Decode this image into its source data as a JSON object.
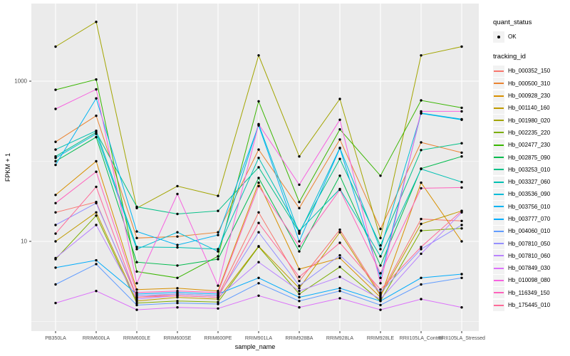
{
  "figure": {
    "xlabel": "sample_name",
    "ylabel": "FPKM + 1"
  },
  "legend": {
    "quant_title": "quant_status",
    "quant_items": [
      {
        "label": "OK",
        "shape": "point"
      }
    ],
    "tracking_title": "tracking_id"
  },
  "style": {
    "panel_bg": "#EBEBEB",
    "grid_color": "#FFFFFF",
    "tick_label_color": "#4D4D4D",
    "tick_mark_color": "#333333",
    "point_color": "#000000"
  },
  "chart_data": {
    "type": "line",
    "title": "",
    "xlabel": "sample_name",
    "ylabel": "FPKM + 1",
    "x_type": "categorical",
    "y_scale": "log10",
    "y_major_ticks": [
      10,
      1000
    ],
    "y_minor_gridlines": [
      1,
      100
    ],
    "ylim": [
      0.76,
      9300
    ],
    "grid": true,
    "legend_position": "right",
    "point_shape": "filled-circle",
    "categories": [
      "PB350LA",
      "RRIM600LA",
      "RRIM600LE",
      "RRIM600SE",
      "RRIM600PE",
      "RRIM901LA",
      "RRIM928BA",
      "RRIM928LA",
      "RRIM928LE",
      "RRII105LA_Control",
      "RRII105LA_Stressed"
    ],
    "series": [
      {
        "name": "Hb_000352_150",
        "color": "#F8766D",
        "values": [
          23,
          31,
          2.0,
          2.2,
          2.1,
          23,
          3.2,
          14,
          2.2,
          19,
          18
        ]
      },
      {
        "name": "Hb_000500_310",
        "color": "#EA8331",
        "values": [
          175,
          370,
          11,
          11.5,
          13,
          140,
          26,
          187,
          14.3,
          172,
          128
        ]
      },
      {
        "name": "Hb_000928_230",
        "color": "#D89000",
        "values": [
          38,
          100,
          2.5,
          2.6,
          2.4,
          54,
          4.5,
          6.2,
          2.0,
          54,
          10
        ]
      },
      {
        "name": "Hb_001140_160",
        "color": "#C09B00",
        "values": [
          10,
          23,
          1.8,
          2.0,
          1.9,
          8.7,
          2.6,
          13,
          2.1,
          16.5,
          24
        ]
      },
      {
        "name": "Hb_001980_020",
        "color": "#A3A500",
        "values": [
          2700,
          5500,
          26,
          49,
          37,
          2100,
          115,
          600,
          11,
          2100,
          2700
        ]
      },
      {
        "name": "Hb_002235_220",
        "color": "#7CAE00",
        "values": [
          6.0,
          21,
          1.7,
          1.8,
          1.75,
          8.6,
          2.2,
          4.8,
          1.8,
          13.6,
          14.5
        ]
      },
      {
        "name": "Hb_002477_230",
        "color": "#39B600",
        "values": [
          780,
          1050,
          4.2,
          3.5,
          6.5,
          560,
          31,
          250,
          66,
          575,
          465
        ]
      },
      {
        "name": "Hb_002875_090",
        "color": "#00BB4E",
        "values": [
          100,
          200,
          5.5,
          5.0,
          6.0,
          62,
          7.5,
          66,
          5.0,
          81,
          115
        ]
      },
      {
        "name": "Hb_003253_010",
        "color": "#00C087",
        "values": [
          115,
          230,
          27,
          22,
          24,
          84,
          13,
          107,
          8.9,
          138,
          168
        ]
      },
      {
        "name": "Hb_003327_060",
        "color": "#00C0B2",
        "values": [
          140,
          240,
          8.5,
          8.4,
          8.0,
          110,
          13.5,
          45,
          6.5,
          80,
          55
        ]
      },
      {
        "name": "Hb_003536_090",
        "color": "#00BCD8",
        "values": [
          110,
          220,
          8.0,
          13,
          7.5,
          290,
          12.5,
          147,
          8.0,
          395,
          330
        ]
      },
      {
        "name": "Hb_003756_010",
        "color": "#00B3F2",
        "values": [
          90,
          610,
          13.3,
          9.0,
          12,
          280,
          10,
          145,
          3.5,
          400,
          335
        ]
      },
      {
        "name": "Hb_003777_070",
        "color": "#00ACFC",
        "values": [
          4.7,
          5.8,
          2.2,
          2.3,
          2.2,
          3.5,
          2.0,
          2.6,
          1.8,
          3.5,
          3.9
        ]
      },
      {
        "name": "Hb_004060_010",
        "color": "#619CFF",
        "values": [
          2.9,
          5.2,
          1.6,
          1.7,
          1.65,
          3.0,
          1.8,
          2.4,
          1.6,
          2.9,
          3.5
        ]
      },
      {
        "name": "Hb_007810_050",
        "color": "#9590FF",
        "values": [
          16,
          30,
          2.1,
          2.2,
          2.1,
          13,
          2.8,
          6.7,
          2.3,
          8.0,
          16
        ]
      },
      {
        "name": "Hb_007810_060",
        "color": "#B983FF",
        "values": [
          6.2,
          16,
          1.9,
          2.1,
          2.0,
          5.5,
          2.4,
          3.6,
          1.9,
          7.0,
          23
        ]
      },
      {
        "name": "Hb_007849_030",
        "color": "#DC71FA",
        "values": [
          1.7,
          2.4,
          1.4,
          1.5,
          1.45,
          2.1,
          1.5,
          1.95,
          1.4,
          1.9,
          1.5
        ]
      },
      {
        "name": "Hb_010098_080",
        "color": "#F763E0",
        "values": [
          450,
          790,
          3.0,
          39,
          2.8,
          290,
          51,
          330,
          3.0,
          420,
          420
        ]
      },
      {
        "name": "Hb_116349_150",
        "color": "#FF62BC",
        "values": [
          30,
          74,
          2.3,
          2.4,
          2.3,
          49,
          8.7,
          44,
          4.0,
          46,
          47
        ]
      },
      {
        "name": "Hb_175445_010",
        "color": "#FF6A98",
        "values": [
          12.5,
          48,
          2.0,
          2.1,
          2.0,
          17,
          3.6,
          9.6,
          2.5,
          8.5,
          24
        ]
      }
    ]
  }
}
